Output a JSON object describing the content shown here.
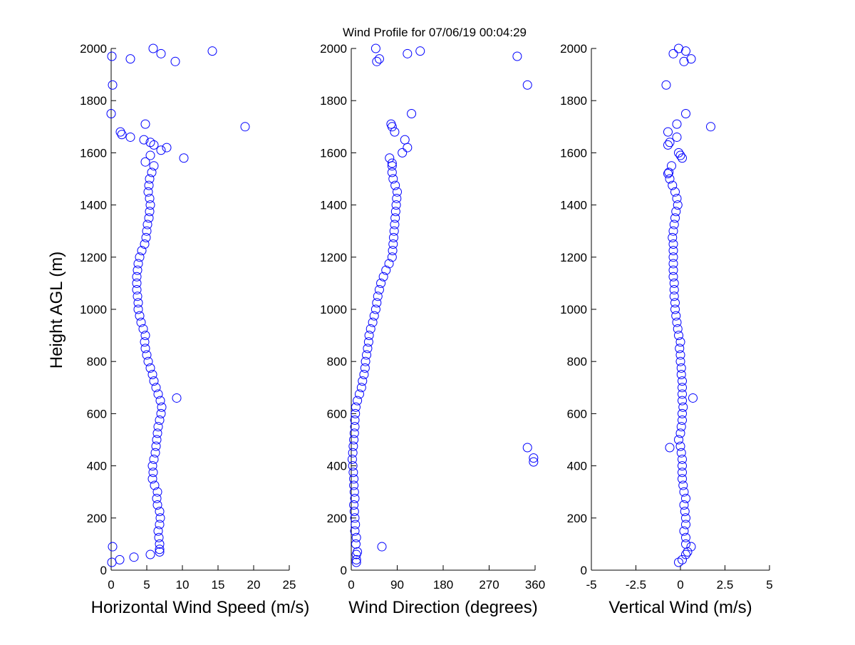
{
  "chart_data": {
    "title": "Wind Profile for  07/06/19 00:04:29",
    "ylabel": "Height AGL (m)",
    "marker_color": "#0000ff",
    "panels": [
      {
        "type": "scatter",
        "xlabel": "Horizontal Wind Speed (m/s)",
        "xlim": [
          0,
          25
        ],
        "xticks": [
          0,
          5,
          10,
          15,
          20,
          25
        ],
        "xtick_labels": [
          "0",
          "5",
          "10",
          "15",
          "20",
          "25"
        ],
        "ylim": [
          0,
          2000
        ],
        "yticks": [
          "0",
          "200",
          "400",
          "600",
          "800",
          "1000",
          "1200",
          "1400",
          "1600",
          "1800",
          "2000"
        ],
        "profile": [
          6.8,
          6.7,
          6.6,
          6.8,
          6.9,
          6.8,
          6.5,
          6.4,
          6.5,
          6.1,
          5.8,
          5.9,
          5.8,
          6.0,
          6.2,
          6.3,
          6.4,
          6.5,
          6.6,
          6.8,
          7.0,
          7.1,
          6.9,
          6.6,
          6.3,
          6.0,
          5.8,
          5.5,
          5.2,
          5.0,
          4.8,
          4.7,
          4.8,
          4.5,
          4.2,
          4.0,
          3.8,
          3.8,
          3.7,
          3.6,
          3.6,
          3.6,
          3.7,
          3.8,
          4.0,
          4.3,
          4.7,
          4.9,
          5.0,
          5.1,
          5.3,
          5.4,
          5.5,
          5.4,
          5.2,
          5.3,
          5.4,
          5.7,
          6.0
        ],
        "extra_points": [
          [
            0.1,
            30
          ],
          [
            1.2,
            40
          ],
          [
            3.2,
            50
          ],
          [
            5.5,
            60
          ],
          [
            6.8,
            70
          ],
          [
            6.8,
            80
          ],
          [
            0.2,
            90
          ],
          [
            9.2,
            660
          ],
          [
            4.8,
            1565
          ],
          [
            10.2,
            1580
          ],
          [
            5.5,
            1590
          ],
          [
            7.0,
            1610
          ],
          [
            7.8,
            1620
          ],
          [
            6.0,
            1630
          ],
          [
            5.5,
            1640
          ],
          [
            4.6,
            1650
          ],
          [
            2.7,
            1660
          ],
          [
            1.5,
            1670
          ],
          [
            1.3,
            1680
          ],
          [
            18.8,
            1700
          ],
          [
            4.8,
            1710
          ],
          [
            0.0,
            1750
          ],
          [
            0.2,
            1860
          ],
          [
            9.0,
            1950
          ],
          [
            2.7,
            1960
          ],
          [
            0.1,
            1970
          ],
          [
            7.0,
            1980
          ],
          [
            14.2,
            1990
          ],
          [
            5.9,
            2000
          ]
        ]
      },
      {
        "type": "scatter",
        "xlabel": "Wind Direction (degrees)",
        "xlim": [
          0,
          360
        ],
        "xticks": [
          0,
          90,
          180,
          270,
          360
        ],
        "xtick_labels": [
          "0",
          "90",
          "180",
          "270",
          "360"
        ],
        "ylim": [
          0,
          2000
        ],
        "yticks": [
          "0",
          "200",
          "400",
          "600",
          "800",
          "1000",
          "1200",
          "1400",
          "1600",
          "1800",
          "2000"
        ],
        "profile": [
          9,
          10,
          7,
          8,
          7,
          6,
          5,
          7,
          6,
          5,
          5,
          4,
          3,
          2,
          3,
          4,
          5,
          6,
          7,
          7,
          8,
          9,
          12,
          16,
          20,
          22,
          25,
          27,
          28,
          30,
          32,
          34,
          35,
          38,
          42,
          45,
          48,
          50,
          52,
          55,
          58,
          63,
          68,
          74,
          80,
          81,
          82,
          83,
          84,
          85,
          86,
          87,
          88,
          89,
          90,
          86,
          82,
          80,
          80
        ],
        "extra_points": [
          [
            10,
            30
          ],
          [
            10,
            40
          ],
          [
            10,
            60
          ],
          [
            12,
            70
          ],
          [
            60,
            90
          ],
          [
            357,
            415
          ],
          [
            357,
            430
          ],
          [
            345,
            470
          ],
          [
            75,
            1580
          ],
          [
            80,
            1560
          ],
          [
            100,
            1600
          ],
          [
            110,
            1620
          ],
          [
            105,
            1650
          ],
          [
            85,
            1680
          ],
          [
            80,
            1700
          ],
          [
            78,
            1710
          ],
          [
            118,
            1750
          ],
          [
            345,
            1860
          ],
          [
            50,
            1950
          ],
          [
            55,
            1960
          ],
          [
            325,
            1970
          ],
          [
            110,
            1980
          ],
          [
            135,
            1990
          ],
          [
            48,
            2000
          ]
        ]
      },
      {
        "type": "scatter",
        "xlabel": "Vertical Wind (m/s)",
        "xlim": [
          -5,
          5
        ],
        "xticks": [
          -5,
          -2.5,
          0,
          2.5,
          5
        ],
        "xtick_labels": [
          "-5",
          "-2.5",
          "0",
          "2.5",
          "5"
        ],
        "ylim": [
          0,
          2000
        ],
        "yticks": [
          "0",
          "200",
          "400",
          "600",
          "800",
          "1000",
          "1200",
          "1400",
          "1600",
          "1800",
          "2000"
        ],
        "profile": [
          0.3,
          0.3,
          0.2,
          0.3,
          0.3,
          0.25,
          0.2,
          0.3,
          0.2,
          0.15,
          0.1,
          0.1,
          0.1,
          0.1,
          0.05,
          0,
          -0.1,
          0,
          0.05,
          0.1,
          0.1,
          0.15,
          0.1,
          0.1,
          0.1,
          0.1,
          0.05,
          0.05,
          0,
          0,
          -0.05,
          0,
          -0.1,
          -0.15,
          -0.2,
          -0.25,
          -0.3,
          -0.3,
          -0.35,
          -0.35,
          -0.35,
          -0.4,
          -0.4,
          -0.4,
          -0.4,
          -0.4,
          -0.4,
          -0.45,
          -0.4,
          -0.35,
          -0.3,
          -0.25,
          -0.15,
          -0.2,
          -0.3,
          -0.45,
          -0.6,
          -0.65,
          -0.5
        ],
        "extra_points": [
          [
            -0.1,
            30
          ],
          [
            0.1,
            40
          ],
          [
            0.3,
            60
          ],
          [
            0.4,
            70
          ],
          [
            0.6,
            90
          ],
          [
            -0.6,
            470
          ],
          [
            0.7,
            660
          ],
          [
            -0.7,
            1520
          ],
          [
            0.1,
            1580
          ],
          [
            -0.1,
            1600
          ],
          [
            0.0,
            1590
          ],
          [
            -0.7,
            1630
          ],
          [
            -0.6,
            1640
          ],
          [
            -0.2,
            1660
          ],
          [
            -0.7,
            1680
          ],
          [
            1.7,
            1700
          ],
          [
            -0.2,
            1710
          ],
          [
            0.3,
            1750
          ],
          [
            -0.8,
            1860
          ],
          [
            0.2,
            1950
          ],
          [
            0.6,
            1960
          ],
          [
            -0.4,
            1980
          ],
          [
            0.3,
            1990
          ],
          [
            -0.1,
            2000
          ]
        ]
      }
    ],
    "profile_heights": [
      100,
      125,
      150,
      175,
      200,
      225,
      250,
      275,
      300,
      325,
      350,
      375,
      400,
      425,
      450,
      475,
      500,
      525,
      550,
      575,
      600,
      625,
      650,
      675,
      700,
      725,
      750,
      775,
      800,
      825,
      850,
      875,
      900,
      925,
      950,
      975,
      1000,
      1025,
      1050,
      1075,
      1100,
      1125,
      1150,
      1175,
      1200,
      1225,
      1250,
      1275,
      1300,
      1325,
      1350,
      1375,
      1400,
      1425,
      1450,
      1475,
      1500,
      1525,
      1550
    ]
  }
}
